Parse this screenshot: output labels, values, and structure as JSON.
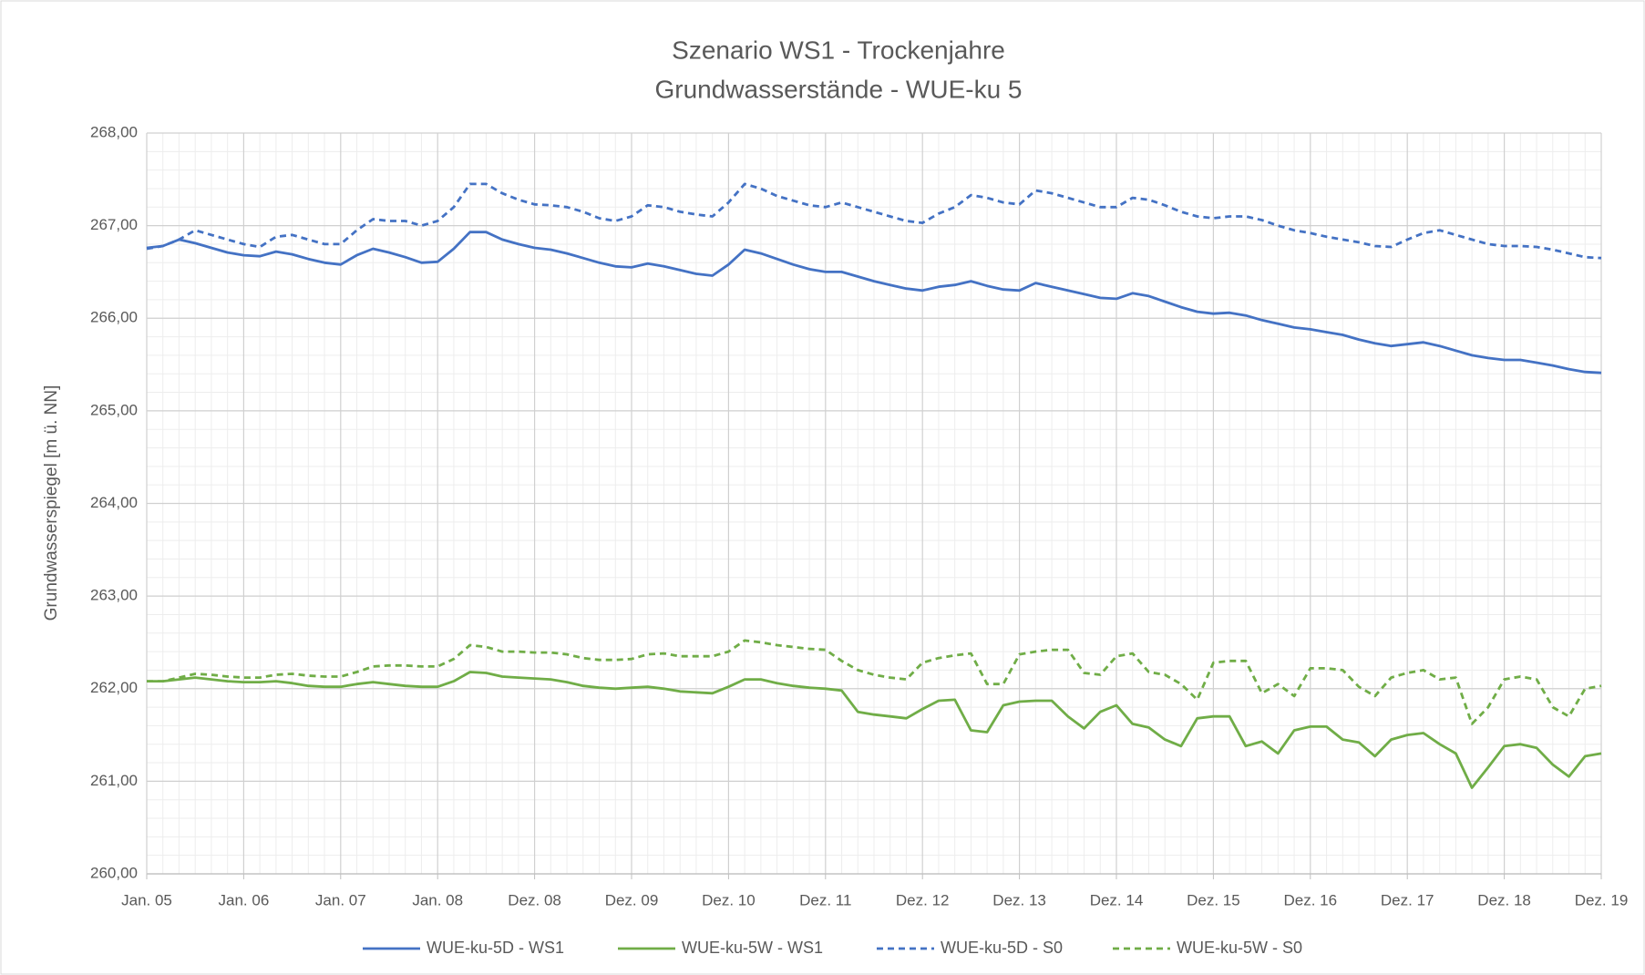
{
  "chart_data": {
    "type": "line",
    "title": "Szenario WS1 - Trockenjahre",
    "subtitle": "Grundwasserstände - WUE-ku 5",
    "y_label": "Grundwasserspiegel [m ü. NN]",
    "categories": [
      "Jan. 05",
      null,
      null,
      null,
      null,
      null,
      "Jan. 06",
      null,
      null,
      null,
      null,
      null,
      "Jan. 07",
      null,
      null,
      null,
      null,
      null,
      "Jan. 08",
      null,
      null,
      null,
      null,
      null,
      "Dez. 08",
      null,
      null,
      null,
      null,
      null,
      "Dez. 09",
      null,
      null,
      null,
      null,
      null,
      "Dez. 10",
      null,
      null,
      null,
      null,
      null,
      "Dez. 11",
      null,
      null,
      null,
      null,
      null,
      "Dez. 12",
      null,
      null,
      null,
      null,
      null,
      "Dez. 13",
      null,
      null,
      null,
      null,
      null,
      "Dez. 14",
      null,
      null,
      null,
      null,
      null,
      "Dez. 15",
      null,
      null,
      null,
      null,
      null,
      "Dez. 16",
      null,
      null,
      null,
      null,
      null,
      "Dez. 17",
      null,
      null,
      null,
      null,
      null,
      "Dez. 18",
      null,
      null,
      null,
      null,
      null,
      "Dez. 19"
    ],
    "series": [
      {
        "name": "WUE-ku-5D - WS1",
        "color": "#4472c4",
        "dashed": false,
        "values": [
          266.76,
          266.78,
          266.85,
          266.81,
          266.76,
          266.71,
          266.68,
          266.67,
          266.72,
          266.69,
          266.64,
          266.6,
          266.58,
          266.68,
          266.75,
          266.71,
          266.66,
          266.6,
          266.61,
          266.75,
          266.93,
          266.93,
          266.85,
          266.8,
          266.76,
          266.74,
          266.7,
          266.65,
          266.6,
          266.56,
          266.55,
          266.59,
          266.56,
          266.52,
          266.48,
          266.46,
          266.58,
          266.74,
          266.7,
          266.64,
          266.58,
          266.53,
          266.5,
          266.5,
          266.45,
          266.4,
          266.36,
          266.32,
          266.3,
          266.34,
          266.36,
          266.4,
          266.35,
          266.31,
          266.3,
          266.38,
          266.34,
          266.3,
          266.26,
          266.22,
          266.21,
          266.27,
          266.24,
          266.18,
          266.12,
          266.07,
          266.05,
          266.06,
          266.03,
          265.98,
          265.94,
          265.9,
          265.88,
          265.85,
          265.82,
          265.77,
          265.73,
          265.7,
          265.72,
          265.74,
          265.7,
          265.65,
          265.6,
          265.57,
          265.55,
          265.55,
          265.52,
          265.49,
          265.45,
          265.42,
          265.41
        ]
      },
      {
        "name": "WUE-ku-5W - WS1",
        "color": "#70ad47",
        "dashed": false,
        "values": [
          262.08,
          262.08,
          262.1,
          262.12,
          262.1,
          262.08,
          262.07,
          262.07,
          262.08,
          262.06,
          262.03,
          262.02,
          262.02,
          262.05,
          262.07,
          262.05,
          262.03,
          262.02,
          262.02,
          262.08,
          262.18,
          262.17,
          262.13,
          262.12,
          262.11,
          262.1,
          262.07,
          262.03,
          262.01,
          262.0,
          262.01,
          262.02,
          262.0,
          261.97,
          261.96,
          261.95,
          262.02,
          262.1,
          262.1,
          262.06,
          262.03,
          262.01,
          262.0,
          261.98,
          261.75,
          261.72,
          261.7,
          261.68,
          261.78,
          261.87,
          261.88,
          261.55,
          261.53,
          261.82,
          261.86,
          261.87,
          261.87,
          261.7,
          261.57,
          261.75,
          261.82,
          261.62,
          261.58,
          261.45,
          261.38,
          261.68,
          261.7,
          261.7,
          261.38,
          261.43,
          261.3,
          261.55,
          261.59,
          261.59,
          261.45,
          261.42,
          261.27,
          261.45,
          261.5,
          261.52,
          261.4,
          261.3,
          260.93,
          261.15,
          261.38,
          261.4,
          261.36,
          261.18,
          261.05,
          261.27,
          261.3
        ]
      },
      {
        "name": "WUE-ku-5D - S0",
        "color": "#4472c4",
        "dashed": true,
        "values": [
          266.75,
          266.78,
          266.85,
          266.95,
          266.9,
          266.85,
          266.8,
          266.77,
          266.88,
          266.9,
          266.85,
          266.8,
          266.8,
          266.95,
          267.07,
          267.05,
          267.05,
          267.0,
          267.05,
          267.2,
          267.45,
          267.45,
          267.35,
          267.28,
          267.23,
          267.22,
          267.2,
          267.15,
          267.08,
          267.05,
          267.1,
          267.22,
          267.2,
          267.15,
          267.12,
          267.1,
          267.25,
          267.45,
          267.4,
          267.32,
          267.27,
          267.22,
          267.2,
          267.25,
          267.2,
          267.15,
          267.1,
          267.05,
          267.03,
          267.13,
          267.2,
          267.33,
          267.3,
          267.25,
          267.23,
          267.38,
          267.35,
          267.3,
          267.25,
          267.2,
          267.2,
          267.3,
          267.28,
          267.22,
          267.15,
          267.1,
          267.08,
          267.1,
          267.1,
          267.06,
          267.0,
          266.95,
          266.92,
          266.88,
          266.85,
          266.82,
          266.78,
          266.77,
          266.85,
          266.92,
          266.95,
          266.9,
          266.85,
          266.8,
          266.78,
          266.78,
          266.77,
          266.74,
          266.7,
          266.66,
          266.65
        ]
      },
      {
        "name": "WUE-ku-5W - S0",
        "color": "#70ad47",
        "dashed": true,
        "values": [
          262.08,
          262.08,
          262.12,
          262.16,
          262.15,
          262.13,
          262.12,
          262.12,
          262.15,
          262.16,
          262.14,
          262.13,
          262.13,
          262.18,
          262.24,
          262.25,
          262.25,
          262.24,
          262.24,
          262.32,
          262.47,
          262.45,
          262.4,
          262.4,
          262.39,
          262.39,
          262.37,
          262.33,
          262.31,
          262.31,
          262.32,
          262.37,
          262.38,
          262.35,
          262.35,
          262.35,
          262.4,
          262.52,
          262.5,
          262.47,
          262.45,
          262.43,
          262.42,
          262.3,
          262.2,
          262.15,
          262.12,
          262.1,
          262.28,
          262.33,
          262.36,
          262.38,
          262.05,
          262.05,
          262.37,
          262.4,
          262.42,
          262.42,
          262.17,
          262.15,
          262.35,
          262.38,
          262.18,
          262.15,
          262.05,
          261.88,
          262.28,
          262.3,
          262.3,
          261.95,
          262.05,
          261.92,
          262.22,
          262.22,
          262.2,
          262.02,
          261.92,
          262.12,
          262.17,
          262.2,
          262.1,
          262.12,
          261.62,
          261.8,
          262.1,
          262.13,
          262.1,
          261.8,
          261.7,
          262.0,
          262.03
        ]
      }
    ],
    "ylim": [
      260,
      268
    ],
    "yticks": [
      {
        "value": 260,
        "label": "260,00"
      },
      {
        "value": 261,
        "label": "261,00"
      },
      {
        "value": 262,
        "label": "262,00"
      },
      {
        "value": 263,
        "label": "263,00"
      },
      {
        "value": 264,
        "label": "264,00"
      },
      {
        "value": 265,
        "label": "265,00"
      },
      {
        "value": 266,
        "label": "266,00"
      },
      {
        "value": 267,
        "label": "267,00"
      },
      {
        "value": 268,
        "label": "268,00"
      }
    ],
    "grid": true,
    "minor_grid": true,
    "legend": "bottom"
  }
}
